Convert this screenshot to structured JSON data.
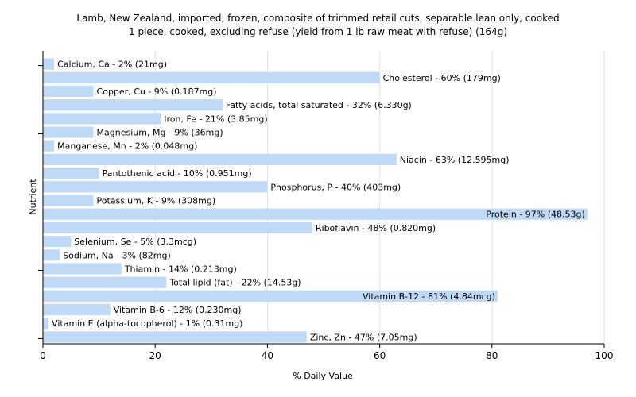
{
  "chart_data": {
    "type": "bar",
    "orientation": "horizontal",
    "title": "Lamb, New Zealand, imported, frozen, composite of trimmed retail cuts, separable lean only, cooked",
    "subtitle": "1 piece, cooked, excluding refuse (yield from 1 lb raw meat with refuse) (164g)",
    "xlabel": "% Daily Value",
    "ylabel": "Nutrient",
    "xlim": [
      0,
      100
    ],
    "xticks": [
      0,
      20,
      40,
      60,
      80,
      100
    ],
    "grid": true,
    "bar_color": "#bfd9f7",
    "categories": [
      "Calcium, Ca",
      "Cholesterol",
      "Copper, Cu",
      "Fatty acids, total saturated",
      "Iron, Fe",
      "Magnesium, Mg",
      "Manganese, Mn",
      "Niacin",
      "Pantothenic acid",
      "Phosphorus, P",
      "Potassium, K",
      "Protein",
      "Riboflavin",
      "Selenium, Se",
      "Sodium, Na",
      "Thiamin",
      "Total lipid (fat)",
      "Vitamin B-12",
      "Vitamin B-6",
      "Vitamin E (alpha-tocopherol)",
      "Zinc, Zn"
    ],
    "values": [
      2,
      60,
      9,
      32,
      21,
      9,
      2,
      63,
      10,
      40,
      9,
      97,
      48,
      5,
      3,
      14,
      22,
      81,
      12,
      1,
      47
    ],
    "labels": [
      "Calcium, Ca - 2% (21mg)",
      "Cholesterol - 60% (179mg)",
      "Copper, Cu - 9% (0.187mg)",
      "Fatty acids, total saturated - 32% (6.330g)",
      "Iron, Fe - 21% (3.85mg)",
      "Magnesium, Mg - 9% (36mg)",
      "Manganese, Mn - 2% (0.048mg)",
      "Niacin - 63% (12.595mg)",
      "Pantothenic acid - 10% (0.951mg)",
      "Phosphorus, P - 40% (403mg)",
      "Potassium, K - 9% (308mg)",
      "Protein - 97% (48.53g)",
      "Riboflavin - 48% (0.820mg)",
      "Selenium, Se - 5% (3.3mcg)",
      "Sodium, Na - 3% (82mg)",
      "Thiamin - 14% (0.213mg)",
      "Total lipid (fat) - 22% (14.53g)",
      "Vitamin B-12 - 81% (4.84mcg)",
      "Vitamin B-6 - 12% (0.230mg)",
      "Vitamin E (alpha-tocopherol) - 1% (0.31mg)",
      "Zinc, Zn - 47% (7.05mg)"
    ]
  }
}
